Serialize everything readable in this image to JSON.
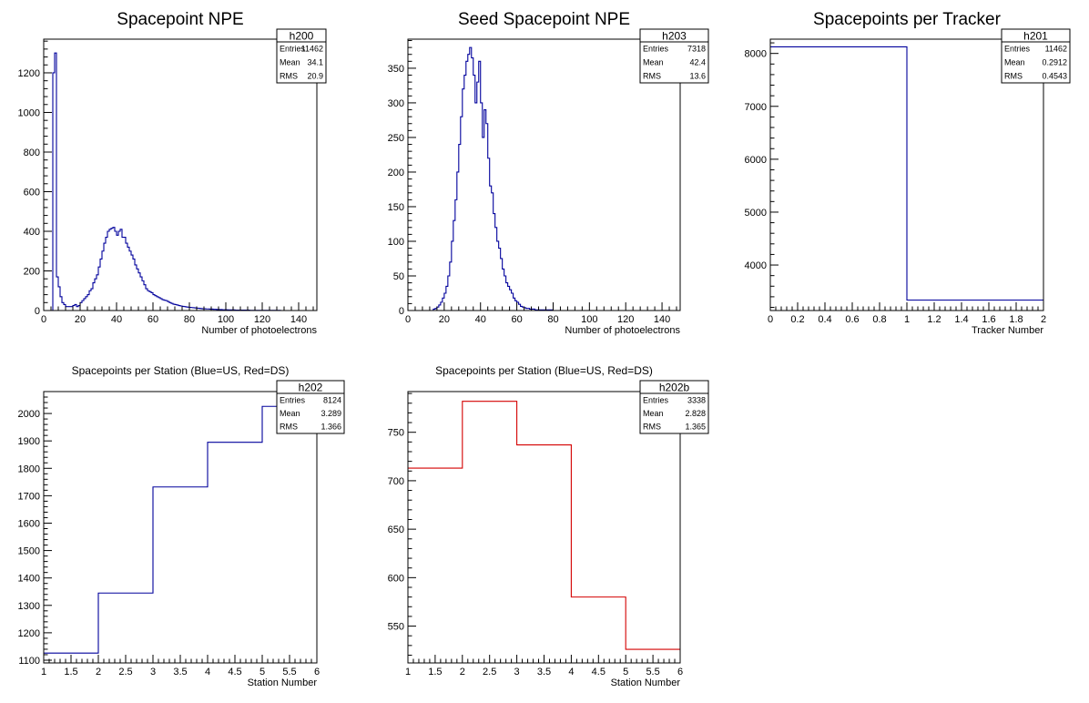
{
  "chart_data": [
    {
      "type": "bar",
      "title": "Spacepoint NPE",
      "xlabel": "Number of photoelectrons",
      "ylabel": "",
      "xlim": [
        0,
        150
      ],
      "ylim": [
        0,
        1370
      ],
      "xticks": [
        0,
        20,
        40,
        60,
        80,
        100,
        120,
        140
      ],
      "yticks": [
        0,
        200,
        400,
        600,
        800,
        1000,
        1200
      ],
      "line_color": "#00009c",
      "bin_width": 1,
      "x_start": 0,
      "values": [
        0,
        0,
        0,
        0,
        0,
        1200,
        1300,
        170,
        120,
        70,
        40,
        30,
        20,
        20,
        20,
        20,
        25,
        30,
        20,
        25,
        40,
        50,
        60,
        70,
        80,
        100,
        110,
        140,
        160,
        180,
        220,
        260,
        300,
        340,
        370,
        400,
        410,
        415,
        420,
        400,
        380,
        400,
        410,
        370,
        370,
        340,
        320,
        300,
        280,
        260,
        230,
        210,
        190,
        170,
        150,
        130,
        110,
        100,
        95,
        90,
        80,
        75,
        70,
        65,
        60,
        55,
        52,
        50,
        45,
        40,
        36,
        32,
        30,
        28,
        25,
        23,
        21,
        20,
        18,
        17,
        16,
        15,
        14,
        13,
        12,
        11,
        10,
        9,
        9,
        8,
        8,
        7,
        7,
        6,
        6,
        5,
        5,
        5,
        4,
        4,
        4,
        3,
        3,
        3,
        3,
        2,
        2,
        2,
        2,
        2,
        2,
        2,
        2,
        1,
        1,
        1,
        1,
        1,
        1,
        1,
        1,
        1,
        1,
        1,
        1,
        1,
        1,
        1,
        1,
        1,
        0,
        0,
        0,
        0,
        0,
        0,
        0,
        0,
        0,
        0,
        0,
        0,
        0,
        0,
        0,
        0,
        0,
        0,
        0,
        0
      ],
      "stats": {
        "name": "h200",
        "rows": [
          [
            "Entries",
            "11462"
          ],
          [
            "Mean",
            "34.1"
          ],
          [
            "RMS",
            "20.9"
          ]
        ]
      }
    },
    {
      "type": "bar",
      "title": "Seed Spacepoint NPE",
      "xlabel": "Number of photoelectrons",
      "ylabel": "",
      "xlim": [
        0,
        150
      ],
      "ylim": [
        0,
        392
      ],
      "xticks": [
        0,
        20,
        40,
        60,
        80,
        100,
        120,
        140
      ],
      "yticks": [
        0,
        50,
        100,
        150,
        200,
        250,
        300,
        350
      ],
      "line_color": "#00009c",
      "bin_width": 1,
      "x_start": 0,
      "values": [
        0,
        0,
        0,
        0,
        0,
        0,
        0,
        0,
        0,
        0,
        0,
        0,
        0,
        0,
        2,
        3,
        5,
        8,
        12,
        18,
        25,
        35,
        50,
        70,
        100,
        130,
        160,
        200,
        240,
        280,
        320,
        340,
        360,
        370,
        380,
        365,
        340,
        300,
        330,
        360,
        300,
        250,
        290,
        270,
        220,
        180,
        170,
        140,
        120,
        100,
        90,
        75,
        60,
        50,
        40,
        35,
        30,
        25,
        18,
        14,
        12,
        9,
        6,
        5,
        4,
        3,
        3,
        2,
        2,
        2,
        1,
        1,
        1,
        1,
        1,
        1,
        1,
        1,
        1,
        1,
        0,
        0,
        0,
        0,
        0,
        0,
        0,
        0,
        0,
        0,
        0,
        0,
        0,
        0,
        0,
        0,
        0,
        0,
        0,
        0,
        0,
        0,
        0,
        0,
        0,
        0,
        0,
        0,
        0,
        0,
        0,
        0,
        0,
        0,
        0,
        0,
        0,
        0,
        0,
        0,
        0,
        0,
        0,
        0,
        0,
        0,
        0,
        0,
        0,
        0,
        0,
        0,
        0,
        0,
        0,
        0,
        0,
        0,
        0,
        0,
        0,
        0,
        0,
        0,
        0,
        0,
        0,
        0,
        0,
        0
      ],
      "stats": {
        "name": "h203",
        "rows": [
          [
            "Entries",
            "7318"
          ],
          [
            "Mean",
            "42.4"
          ],
          [
            "RMS",
            "13.6"
          ]
        ]
      }
    },
    {
      "type": "bar",
      "title": "Spacepoints per Tracker",
      "xlabel": "Tracker Number",
      "ylabel": "",
      "xlim": [
        0,
        2
      ],
      "ylim": [
        3140,
        8270
      ],
      "xticks": [
        0,
        0.2,
        0.4,
        0.6,
        0.8,
        1,
        1.2,
        1.4,
        1.6,
        1.8,
        2
      ],
      "yticks": [
        4000,
        5000,
        6000,
        7000,
        8000
      ],
      "line_color": "#00009c",
      "bin_width": 1,
      "x_start": 0,
      "values": [
        8124,
        3338
      ],
      "stats": {
        "name": "h201",
        "rows": [
          [
            "Entries",
            "11462"
          ],
          [
            "Mean",
            "0.2912"
          ],
          [
            "RMS",
            "0.4543"
          ]
        ]
      }
    },
    {
      "type": "bar",
      "title": "Spacepoints per Station (Blue=US, Red=DS)",
      "xlabel": "Station Number",
      "ylabel": "",
      "xlim": [
        1,
        6
      ],
      "ylim": [
        1090,
        2080
      ],
      "xticks": [
        1,
        1.5,
        2,
        2.5,
        3,
        3.5,
        4,
        4.5,
        5,
        5.5,
        6
      ],
      "yticks": [
        1100,
        1200,
        1300,
        1400,
        1500,
        1600,
        1700,
        1800,
        1900,
        2000
      ],
      "line_color": "#00009c",
      "bin_width": 1,
      "x_start": 1,
      "values": [
        1126,
        1345,
        1732,
        1895,
        2026
      ],
      "stats": {
        "name": "h202",
        "rows": [
          [
            "Entries",
            "8124"
          ],
          [
            "Mean",
            "3.289"
          ],
          [
            "RMS",
            "1.366"
          ]
        ]
      }
    },
    {
      "type": "bar",
      "title": "Spacepoints per Station (Blue=US, Red=DS)",
      "xlabel": "Station Number",
      "ylabel": "",
      "xlim": [
        1,
        6
      ],
      "ylim": [
        512,
        792
      ],
      "xticks": [
        1,
        1.5,
        2,
        2.5,
        3,
        3.5,
        4,
        4.5,
        5,
        5.5,
        6
      ],
      "yticks": [
        550,
        600,
        650,
        700,
        750
      ],
      "line_color": "#d40000",
      "bin_width": 1,
      "x_start": 1,
      "values": [
        713,
        782,
        737,
        580,
        526
      ],
      "stats": {
        "name": "h202b",
        "rows": [
          [
            "Entries",
            "3338"
          ],
          [
            "Mean",
            "2.828"
          ],
          [
            "RMS",
            "1.365"
          ]
        ]
      }
    }
  ]
}
